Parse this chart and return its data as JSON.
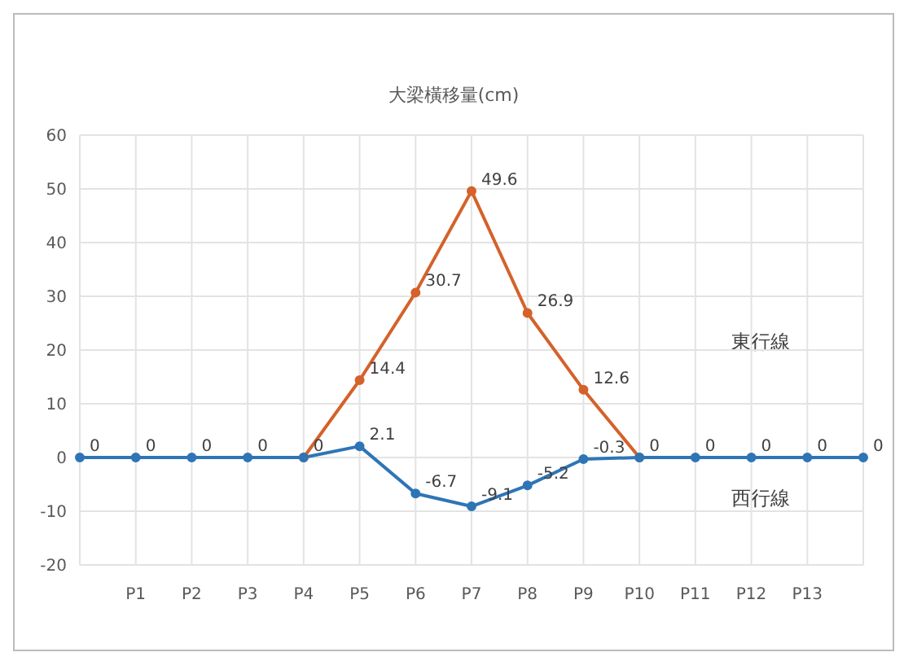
{
  "chart_data": {
    "type": "line",
    "title": "大梁橫移量(cm)",
    "categories": [
      null,
      "P1",
      "P2",
      "P3",
      "P4",
      "P5",
      "P6",
      "P7",
      "P8",
      "P9",
      "P10",
      "P11",
      "P12",
      "P13",
      null
    ],
    "series": [
      {
        "color": "#d4622a",
        "values": [
          null,
          null,
          null,
          null,
          0,
          14.4,
          30.7,
          49.6,
          26.9,
          12.6,
          0,
          null,
          null,
          null,
          null
        ],
        "value_labels": [
          null,
          null,
          null,
          null,
          null,
          "14.4",
          "30.7",
          "49.6",
          "26.9",
          "12.6",
          null,
          null,
          null,
          null,
          null
        ]
      },
      {
        "color": "#2e75b6",
        "values": [
          0,
          0,
          0,
          0,
          0,
          2.1,
          -6.7,
          -9.1,
          -5.2,
          -0.3,
          0,
          0,
          0,
          0,
          0
        ],
        "value_labels": [
          "0",
          "0",
          "0",
          "0",
          "0",
          "2.1",
          "-6.7",
          "-9.1",
          "-5.2",
          "-0.3",
          "0",
          "0",
          "0",
          "0",
          "0"
        ]
      }
    ],
    "annotations": [
      "東行線",
      "西行線"
    ],
    "ylim": [
      -20,
      60
    ],
    "yticks": [
      -20,
      -10,
      0,
      10,
      20,
      30,
      40,
      50,
      60
    ],
    "grid": true,
    "marker": "circle",
    "line_style": "solid"
  }
}
